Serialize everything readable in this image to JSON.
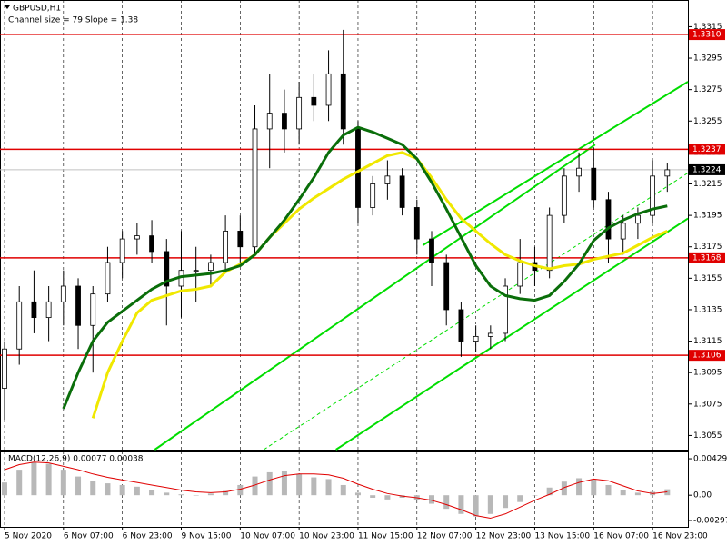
{
  "header": {
    "symbol": "GBPUSD,H1",
    "channel": "Channel size = 79 Slope = 1.38"
  },
  "chart_data": [
    {
      "type": "candlestick",
      "xlim": [
        0,
        46.4
      ],
      "ylim": [
        1.3046,
        1.3332
      ],
      "grid": true,
      "yticks": [
        1.3315,
        1.3295,
        1.3275,
        1.3255,
        1.3235,
        1.3215,
        1.3195,
        1.3175,
        1.3155,
        1.3135,
        1.3115,
        1.3095,
        1.3075,
        1.3055
      ],
      "xticks": [
        {
          "value": 0,
          "label": "5 Nov 2020"
        },
        {
          "value": 4,
          "label": "6 Nov 07:00"
        },
        {
          "value": 8,
          "label": "6 Nov 23:00"
        },
        {
          "value": 12,
          "label": "9 Nov 15:00"
        },
        {
          "value": 16,
          "label": "10 Nov 07:00"
        },
        {
          "value": 20,
          "label": "10 Nov 23:00"
        },
        {
          "value": 24,
          "label": "11 Nov 15:00"
        },
        {
          "value": 28,
          "label": "12 Nov 07:00"
        },
        {
          "value": 32,
          "label": "12 Nov 23:00"
        },
        {
          "value": 36,
          "label": "13 Nov 15:00"
        },
        {
          "value": 40,
          "label": "16 Nov 07:00"
        },
        {
          "value": 44,
          "label": "16 Nov 23:00"
        }
      ],
      "candles": {
        "open": [
          1.3085,
          1.311,
          1.314,
          1.313,
          1.314,
          1.315,
          1.3125,
          1.3145,
          1.3165,
          1.318,
          1.3182,
          1.3172,
          1.315,
          1.316,
          1.316,
          1.3165,
          1.3185,
          1.3175,
          1.325,
          1.326,
          1.325,
          1.327,
          1.3265,
          1.3285,
          1.325,
          1.32,
          1.3215,
          1.322,
          1.32,
          1.318,
          1.3165,
          1.3135,
          1.3115,
          1.3118,
          1.312,
          1.315,
          1.3165,
          1.316,
          1.3195,
          1.322,
          1.3225,
          1.3205,
          1.318,
          1.319,
          1.3195,
          1.322
        ],
        "high": [
          1.3115,
          1.315,
          1.316,
          1.315,
          1.316,
          1.3155,
          1.315,
          1.3175,
          1.3185,
          1.319,
          1.3192,
          1.318,
          1.3185,
          1.3175,
          1.317,
          1.3195,
          1.3195,
          1.3265,
          1.3285,
          1.3275,
          1.328,
          1.3285,
          1.33,
          1.3313,
          1.3255,
          1.322,
          1.323,
          1.3225,
          1.3205,
          1.3185,
          1.317,
          1.314,
          1.3125,
          1.3125,
          1.3155,
          1.318,
          1.3175,
          1.32,
          1.3225,
          1.3235,
          1.3238,
          1.321,
          1.3195,
          1.32,
          1.323,
          1.3228
        ],
        "low": [
          1.3065,
          1.31,
          1.312,
          1.3115,
          1.3125,
          1.311,
          1.3095,
          1.314,
          1.3155,
          1.317,
          1.3165,
          1.3125,
          1.313,
          1.314,
          1.315,
          1.316,
          1.3165,
          1.317,
          1.3225,
          1.3235,
          1.324,
          1.3255,
          1.3255,
          1.324,
          1.319,
          1.3195,
          1.3205,
          1.3195,
          1.317,
          1.315,
          1.3125,
          1.3105,
          1.3108,
          1.311,
          1.3115,
          1.3145,
          1.315,
          1.3155,
          1.319,
          1.321,
          1.32,
          1.3165,
          1.317,
          1.318,
          1.319,
          1.321
        ],
        "close": [
          1.311,
          1.314,
          1.313,
          1.314,
          1.315,
          1.3125,
          1.3145,
          1.3165,
          1.318,
          1.3182,
          1.3172,
          1.315,
          1.316,
          1.316,
          1.3165,
          1.3185,
          1.3175,
          1.325,
          1.326,
          1.325,
          1.327,
          1.3265,
          1.3285,
          1.325,
          1.32,
          1.3215,
          1.322,
          1.32,
          1.318,
          1.3165,
          1.3135,
          1.3115,
          1.3118,
          1.312,
          1.315,
          1.3165,
          1.316,
          1.3195,
          1.322,
          1.3225,
          1.3205,
          1.318,
          1.319,
          1.3195,
          1.322,
          1.3224
        ]
      },
      "series": [
        {
          "color": "#f0e800",
          "values": [
            null,
            null,
            null,
            null,
            null,
            null,
            1.3066,
            1.3095,
            1.3115,
            1.3133,
            1.3141,
            1.3144,
            1.3147,
            1.3148,
            1.315,
            1.3159,
            1.3164,
            1.317,
            1.3181,
            1.319,
            1.3199,
            1.3206,
            1.3212,
            1.3218,
            1.3223,
            1.3228,
            1.3233,
            1.3235,
            1.3231,
            1.3219,
            1.3205,
            1.3193,
            1.3185,
            1.3177,
            1.317,
            1.3166,
            1.3163,
            1.3161,
            1.3163,
            1.3164,
            1.3167,
            1.3169,
            1.3171,
            1.3176,
            1.3181,
            1.3185
          ]
        },
        {
          "color": "#0a6e0a",
          "values": [
            null,
            null,
            null,
            null,
            1.3072,
            1.3095,
            1.3115,
            1.3127,
            1.3134,
            1.3141,
            1.3148,
            1.3153,
            1.3156,
            1.3157,
            1.3158,
            1.316,
            1.3163,
            1.317,
            1.3181,
            1.3192,
            1.3205,
            1.3219,
            1.3235,
            1.3246,
            1.3251,
            1.3248,
            1.3244,
            1.324,
            1.3231,
            1.3216,
            1.3199,
            1.3181,
            1.3163,
            1.315,
            1.3144,
            1.3142,
            1.3141,
            1.3144,
            1.3153,
            1.3164,
            1.3179,
            1.3187,
            1.3192,
            1.3196,
            1.3199,
            1.3201
          ]
        }
      ],
      "channel": {
        "color": "#00dd00",
        "lines": [
          {
            "x": [
              28.4,
              46.4
            ],
            "y": [
              1.3176,
              1.328
            ],
            "dashed": false
          },
          {
            "x": [
              10.2,
              40.1
            ],
            "y": [
              1.3046,
              1.324
            ],
            "dashed": false
          },
          {
            "x": [
              17.6,
              46.4
            ],
            "y": [
              1.3046,
              1.3222
            ],
            "dashed": true
          },
          {
            "x": [
              22.5,
              46.4
            ],
            "y": [
              1.3046,
              1.3193
            ],
            "dashed": false
          }
        ]
      },
      "level_color": "#e00000",
      "levels": [
        {
          "value": 1.331,
          "label": "1.3310"
        },
        1.3237,
        1.3168,
        1.3106
      ],
      "last": 1.3224
    },
    {
      "type": "macd",
      "title": "MACD(12,26,9) 0.00077 0.00038",
      "ylim": [
        -0.00372,
        0.00515
      ],
      "yticks": [
        0.00429,
        {
          "value": 0,
          "label": "0.00"
        },
        -0.00297
      ],
      "bars": {
        "color": "#b8b8b8",
        "values": [
          0.0015,
          0.003,
          0.0039,
          0.0037,
          0.003,
          0.0022,
          0.0017,
          0.0014,
          0.0012,
          0.001,
          0.0006,
          0.0003,
          0.0001,
          0,
          0.0002,
          0.0005,
          0.0012,
          0.0022,
          0.0027,
          0.0028,
          0.0025,
          0.0021,
          0.0019,
          0.0012,
          0.0003,
          -0.0003,
          -0.0005,
          -0.0003,
          -0.0006,
          -0.001,
          -0.0016,
          -0.0022,
          -0.0025,
          -0.0022,
          -0.0015,
          -0.0008,
          0,
          0.0009,
          0.0016,
          0.002,
          0.0019,
          0.0012,
          0.0006,
          0.0003,
          0.0004,
          0.0007
        ]
      },
      "signal": {
        "color": "#e00000",
        "values": [
          0.003,
          0.0036,
          0.0039,
          0.0038,
          0.0034,
          0.003,
          0.0025,
          0.0021,
          0.0018,
          0.0015,
          0.0012,
          0.0009,
          0.0006,
          0.0004,
          0.0003,
          0.0004,
          0.0007,
          0.0012,
          0.0018,
          0.0023,
          0.0025,
          0.0025,
          0.0024,
          0.002,
          0.0013,
          0.0007,
          0.0002,
          -0.0001,
          -0.0003,
          -0.0006,
          -0.0011,
          -0.0017,
          -0.0024,
          -0.0027,
          -0.0022,
          -0.0014,
          -0.0006,
          0.0001,
          0.0009,
          0.0015,
          0.0019,
          0.0017,
          0.0011,
          0.0005,
          0.0002,
          0.0004
        ]
      }
    }
  ]
}
